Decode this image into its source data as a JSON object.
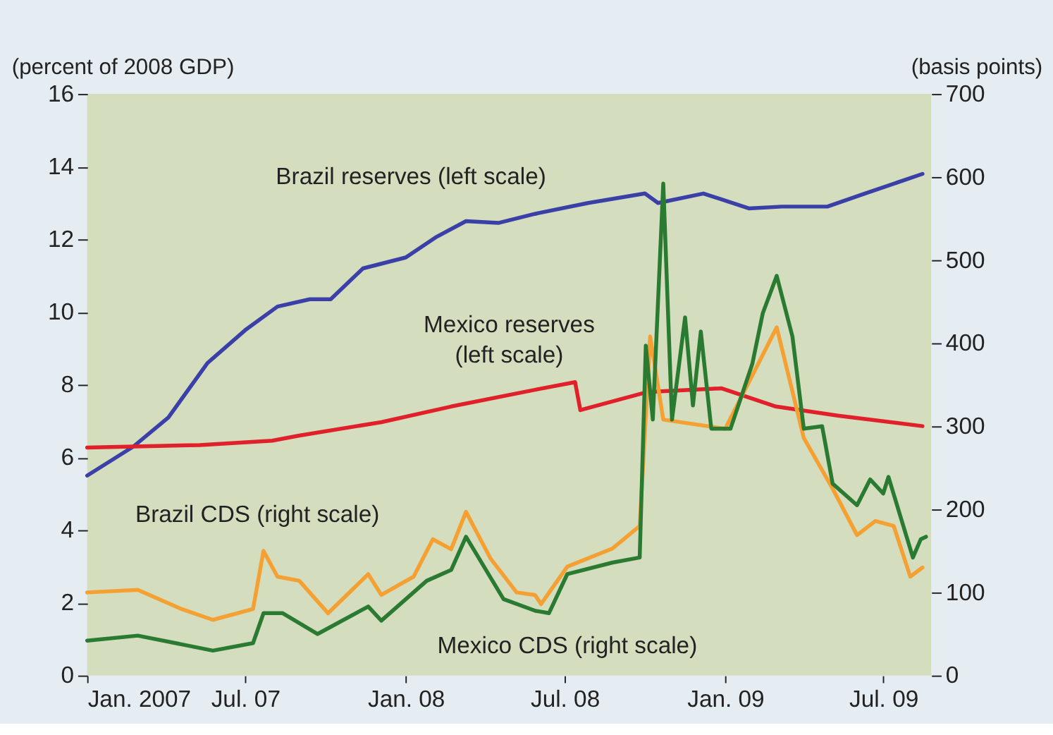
{
  "chart_data": {
    "type": "line",
    "ylabel": "(percent of 2008 GDP)",
    "y2label": "(basis points)",
    "xlim": [
      "2007-01-01",
      "2009-08-25"
    ],
    "xticks": [
      {
        "value": "2007-01-01",
        "label": "Jan. 2007"
      },
      {
        "value": "2007-07-01",
        "label": "Jul. 07"
      },
      {
        "value": "2008-01-01",
        "label": "Jan. 08"
      },
      {
        "value": "2008-07-01",
        "label": "Jul. 08"
      },
      {
        "value": "2009-01-01",
        "label": "Jan. 09"
      },
      {
        "value": "2009-07-01",
        "label": "Jul. 09"
      }
    ],
    "ylim": [
      0,
      16
    ],
    "yticks": [
      0,
      2,
      4,
      6,
      8,
      10,
      12,
      14,
      16
    ],
    "y2lim": [
      0,
      700
    ],
    "y2ticks": [
      0,
      100,
      200,
      300,
      400,
      500,
      600,
      700
    ],
    "grid": false,
    "legend": false,
    "marker": "none",
    "line_style": "solid",
    "series": [
      {
        "name": "Brazil reserves (left scale)",
        "color": "#3a40a8",
        "x": [
          "2007-01-01",
          "2007-02-23",
          "2007-04-04",
          "2007-05-19",
          "2007-07-01",
          "2007-08-07",
          "2007-09-13",
          "2007-10-07",
          "2007-11-13",
          "2008-01-01",
          "2008-02-04",
          "2008-03-10",
          "2008-04-16",
          "2008-05-28",
          "2008-07-28",
          "2008-10-01",
          "2008-10-16",
          "2008-12-07",
          "2009-01-28",
          "2009-03-07",
          "2009-04-28",
          "2009-06-10",
          "2009-08-15"
        ],
        "values": [
          5.5,
          6.3,
          7.1,
          8.6,
          9.5,
          10.15,
          10.35,
          10.35,
          11.2,
          11.5,
          12.05,
          12.5,
          12.45,
          12.7,
          13.0,
          13.26,
          13.0,
          13.26,
          12.85,
          12.9,
          12.9,
          13.26,
          13.8
        ]
      },
      {
        "name": "Mexico reserves (left scale)",
        "color": "#e0202a",
        "x": [
          "2007-01-01",
          "2007-05-10",
          "2007-08-01",
          "2007-09-01",
          "2007-12-04",
          "2008-02-22",
          "2008-05-28",
          "2008-07-13",
          "2008-07-19",
          "2008-10-04",
          "2008-12-28",
          "2009-02-28",
          "2009-05-10",
          "2009-08-15"
        ],
        "values": [
          6.27,
          6.34,
          6.46,
          6.6,
          6.97,
          7.4,
          7.86,
          8.07,
          7.3,
          7.8,
          7.9,
          7.4,
          7.15,
          6.86
        ]
      },
      {
        "name": "Brazil CDS (right scale)",
        "color": "#f5a033",
        "axis": "y2",
        "x": [
          "2007-01-01",
          "2007-02-28",
          "2007-04-19",
          "2007-05-25",
          "2007-07-10",
          "2007-07-22",
          "2007-08-07",
          "2007-09-01",
          "2007-10-04",
          "2007-11-19",
          "2007-12-04",
          "2008-01-10",
          "2008-02-01",
          "2008-02-22",
          "2008-03-10",
          "2008-04-07",
          "2008-05-07",
          "2008-05-28",
          "2008-06-04",
          "2008-07-04",
          "2008-08-25",
          "2008-09-25",
          "2008-10-07",
          "2008-10-22",
          "2009-01-01",
          "2009-03-01",
          "2009-04-01",
          "2009-05-04",
          "2009-06-01",
          "2009-06-22",
          "2009-07-13",
          "2009-08-01",
          "2009-08-15"
        ],
        "values": [
          100,
          103,
          80,
          67,
          80,
          150,
          119,
          114,
          75,
          122,
          97,
          119,
          164,
          152,
          197,
          141,
          100,
          97,
          86,
          131,
          153,
          180,
          408,
          308,
          297,
          419,
          286,
          225,
          169,
          186,
          180,
          119,
          130
        ]
      },
      {
        "name": "Mexico CDS (right scale)",
        "color": "#2a7a32",
        "axis": "y2",
        "x": [
          "2007-01-01",
          "2007-02-28",
          "2007-05-25",
          "2007-07-10",
          "2007-07-22",
          "2007-08-13",
          "2007-09-22",
          "2007-11-19",
          "2007-12-04",
          "2008-01-25",
          "2008-02-22",
          "2008-03-10",
          "2008-04-22",
          "2008-05-28",
          "2008-06-13",
          "2008-07-04",
          "2008-08-25",
          "2008-09-25",
          "2008-10-02",
          "2008-10-10",
          "2008-10-22",
          "2008-11-01",
          "2008-11-16",
          "2008-11-25",
          "2008-12-04",
          "2008-12-16",
          "2009-01-07",
          "2009-02-01",
          "2009-02-13",
          "2009-03-01",
          "2009-03-19",
          "2009-04-01",
          "2009-04-22",
          "2009-05-04",
          "2009-06-01",
          "2009-06-16",
          "2009-07-01",
          "2009-07-07",
          "2009-08-04",
          "2009-08-13",
          "2009-08-19"
        ],
        "values": [
          42,
          48,
          30,
          39,
          75,
          75,
          50,
          83,
          66,
          114,
          127,
          167,
          92,
          78,
          75,
          122,
          136,
          142,
          397,
          308,
          592,
          308,
          431,
          325,
          414,
          297,
          297,
          375,
          436,
          481,
          408,
          297,
          300,
          231,
          205,
          236,
          219,
          239,
          142,
          164,
          167
        ]
      }
    ]
  }
}
